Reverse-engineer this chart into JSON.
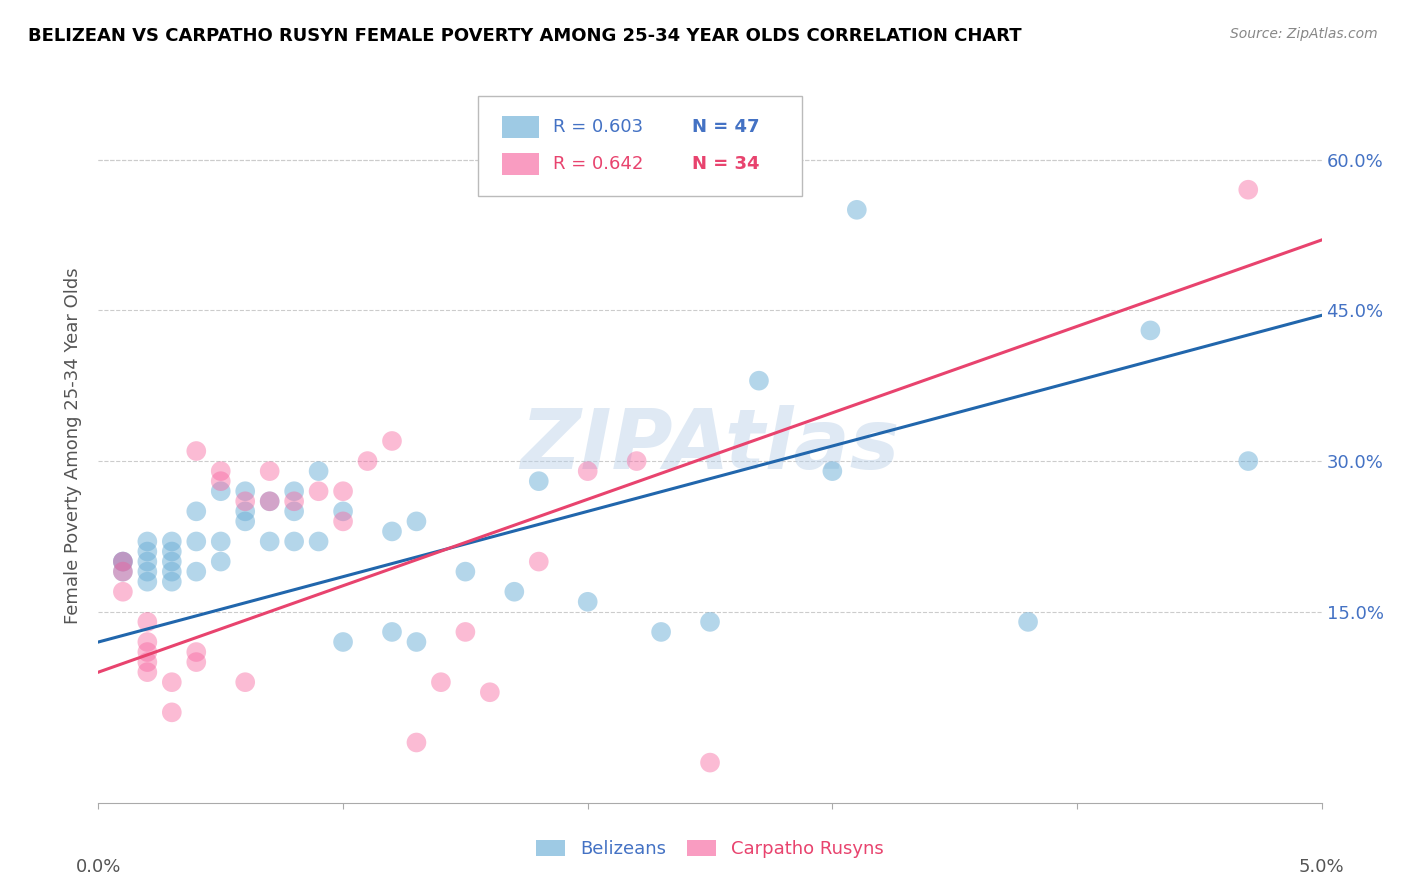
{
  "title": "BELIZEAN VS CARPATHO RUSYN FEMALE POVERTY AMONG 25-34 YEAR OLDS CORRELATION CHART",
  "source": "Source: ZipAtlas.com",
  "ylabel": "Female Poverty Among 25-34 Year Olds",
  "yticks": [
    0.0,
    0.15,
    0.3,
    0.45,
    0.6
  ],
  "ytick_labels": [
    "",
    "15.0%",
    "30.0%",
    "45.0%",
    "60.0%"
  ],
  "xmin": 0.0,
  "xmax": 0.05,
  "ymin": -0.04,
  "ymax": 0.67,
  "watermark": "ZIPAtlas",
  "legend_blue_r": "R = 0.603",
  "legend_blue_n": "N = 47",
  "legend_pink_r": "R = 0.642",
  "legend_pink_n": "N = 34",
  "blue_color": "#6baed6",
  "pink_color": "#f768a1",
  "line_blue_color": "#2166ac",
  "line_pink_color": "#e8436e",
  "blue_scatter_x": [
    0.001,
    0.001,
    0.001,
    0.002,
    0.002,
    0.002,
    0.002,
    0.002,
    0.003,
    0.003,
    0.003,
    0.003,
    0.003,
    0.004,
    0.004,
    0.004,
    0.005,
    0.005,
    0.005,
    0.006,
    0.006,
    0.006,
    0.007,
    0.007,
    0.008,
    0.008,
    0.008,
    0.009,
    0.009,
    0.01,
    0.01,
    0.012,
    0.012,
    0.013,
    0.013,
    0.015,
    0.017,
    0.018,
    0.02,
    0.023,
    0.025,
    0.027,
    0.03,
    0.031,
    0.038,
    0.043,
    0.047
  ],
  "blue_scatter_y": [
    0.19,
    0.2,
    0.2,
    0.18,
    0.19,
    0.2,
    0.21,
    0.22,
    0.18,
    0.19,
    0.2,
    0.21,
    0.22,
    0.19,
    0.22,
    0.25,
    0.2,
    0.22,
    0.27,
    0.24,
    0.25,
    0.27,
    0.22,
    0.26,
    0.22,
    0.25,
    0.27,
    0.22,
    0.29,
    0.12,
    0.25,
    0.23,
    0.13,
    0.24,
    0.12,
    0.19,
    0.17,
    0.28,
    0.16,
    0.13,
    0.14,
    0.38,
    0.29,
    0.55,
    0.14,
    0.43,
    0.3
  ],
  "pink_scatter_x": [
    0.001,
    0.001,
    0.001,
    0.002,
    0.002,
    0.002,
    0.002,
    0.002,
    0.003,
    0.003,
    0.004,
    0.004,
    0.004,
    0.005,
    0.005,
    0.006,
    0.006,
    0.007,
    0.007,
    0.008,
    0.009,
    0.01,
    0.01,
    0.011,
    0.012,
    0.013,
    0.014,
    0.015,
    0.016,
    0.018,
    0.02,
    0.022,
    0.025,
    0.047
  ],
  "pink_scatter_y": [
    0.17,
    0.19,
    0.2,
    0.09,
    0.1,
    0.11,
    0.12,
    0.14,
    0.05,
    0.08,
    0.31,
    0.1,
    0.11,
    0.28,
    0.29,
    0.08,
    0.26,
    0.26,
    0.29,
    0.26,
    0.27,
    0.24,
    0.27,
    0.3,
    0.32,
    0.02,
    0.08,
    0.13,
    0.07,
    0.2,
    0.29,
    0.3,
    0.0,
    0.57
  ],
  "blue_line_x": [
    0.0,
    0.05
  ],
  "blue_line_y": [
    0.12,
    0.445
  ],
  "pink_line_x": [
    0.0,
    0.05
  ],
  "pink_line_y": [
    0.09,
    0.52
  ],
  "tick_color": "#4472C4",
  "grid_color": "#cccccc",
  "title_fontsize": 13,
  "axis_label_fontsize": 13,
  "tick_fontsize": 13
}
